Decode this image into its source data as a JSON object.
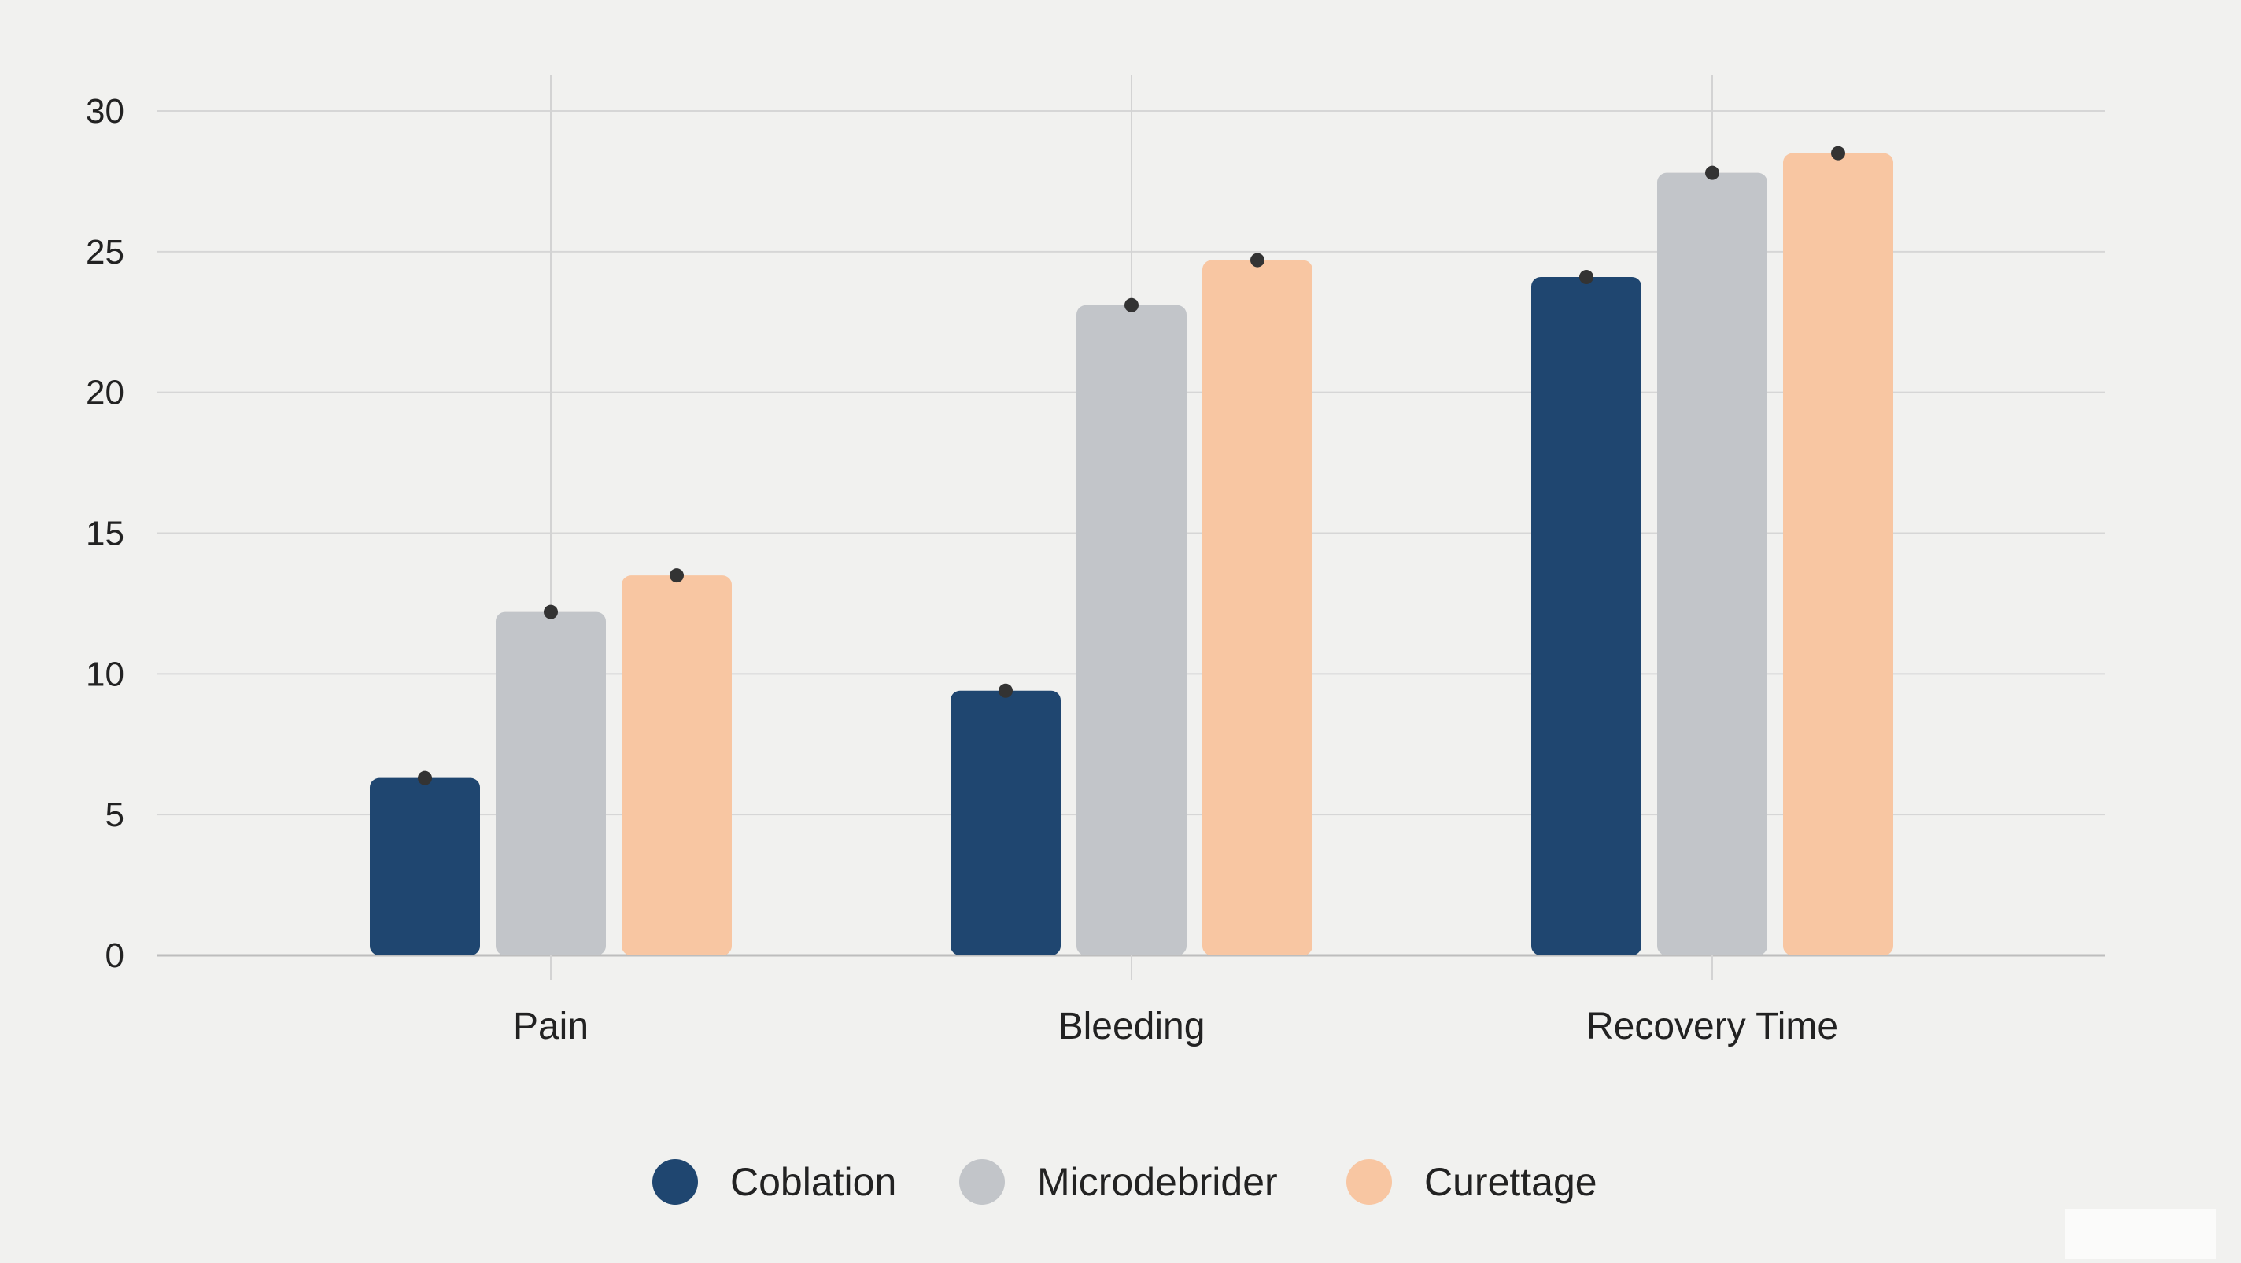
{
  "chart_data": {
    "type": "bar",
    "title": "",
    "xlabel": "",
    "ylabel": "",
    "categories": [
      "Pain",
      "Bleeding",
      "Recovery Time"
    ],
    "series": [
      {
        "name": "Coblation",
        "color": "#1f4670",
        "values": [
          6.3,
          9.4,
          24.1
        ]
      },
      {
        "name": "Microdebrider",
        "color": "#c2c5c9",
        "values": [
          12.2,
          23.1,
          27.8
        ]
      },
      {
        "name": "Curettage",
        "color": "#f8c6a2",
        "values": [
          13.5,
          24.7,
          28.5
        ]
      }
    ],
    "ylim": [
      0,
      30
    ],
    "yticks": [
      "0",
      "5",
      "10",
      "15",
      "20",
      "25",
      "30"
    ],
    "grid": true,
    "legend": "bottom-center",
    "marker_color": "#333333"
  }
}
